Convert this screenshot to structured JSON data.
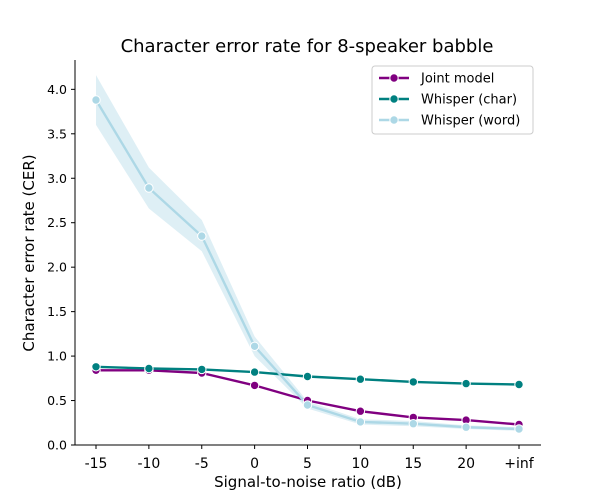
{
  "chart_data": {
    "type": "line",
    "title": "Character error rate for 8-speaker babble",
    "xlabel": "Signal-to-noise ratio (dB)",
    "ylabel": "Character error rate (CER)",
    "categories": [
      "-15",
      "-10",
      "-5",
      "0",
      "5",
      "10",
      "15",
      "20",
      "+inf"
    ],
    "ylim": [
      0,
      4.33
    ],
    "yticks": [
      "0.0",
      "0.5",
      "1.0",
      "1.5",
      "2.0",
      "2.5",
      "3.0",
      "3.5",
      "4.0"
    ],
    "legend_position": "top-right",
    "grid": false,
    "series": [
      {
        "name": "Joint model",
        "color": "#800080",
        "values": [
          0.84,
          0.84,
          0.81,
          0.67,
          0.5,
          0.38,
          0.31,
          0.28,
          0.23
        ]
      },
      {
        "name": "Whisper (char)",
        "color": "#008080",
        "values": [
          0.88,
          0.86,
          0.85,
          0.82,
          0.77,
          0.74,
          0.71,
          0.69,
          0.68
        ]
      },
      {
        "name": "Whisper (word)",
        "color": "#add8e6",
        "values": [
          3.88,
          2.89,
          2.35,
          1.11,
          0.45,
          0.26,
          0.24,
          0.2,
          0.18
        ],
        "band_lower": [
          3.6,
          2.66,
          2.18,
          1.0,
          0.41,
          0.23,
          0.21,
          0.18,
          0.16
        ],
        "band_upper": [
          4.16,
          3.12,
          2.53,
          1.22,
          0.49,
          0.29,
          0.27,
          0.22,
          0.2
        ]
      }
    ]
  }
}
